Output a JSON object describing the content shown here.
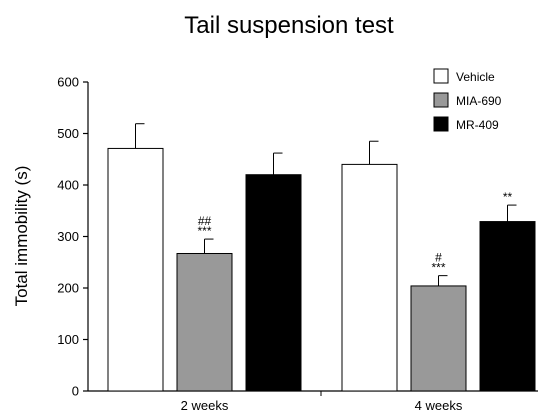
{
  "chart_data": {
    "type": "bar",
    "title": "Tail suspension test",
    "xlabel": "",
    "ylabel": "Total immobility (s)",
    "ylim": [
      0,
      600
    ],
    "yticks": [
      0,
      100,
      200,
      300,
      400,
      500,
      600
    ],
    "categories": [
      "2 weeks",
      "4 weeks"
    ],
    "grid": false,
    "legend_position": "top-right",
    "series": [
      {
        "name": "Vehicle",
        "color": "#ffffff",
        "values": [
          471,
          440
        ],
        "errors": [
          48,
          45
        ],
        "annotations": [
          "",
          ""
        ]
      },
      {
        "name": "MIA-690",
        "color": "#999999",
        "values": [
          267,
          204
        ],
        "errors": [
          28,
          20
        ],
        "annotations": [
          "##\n***",
          "#\n***"
        ]
      },
      {
        "name": "MR-409",
        "color": "#000000",
        "values": [
          420,
          329
        ],
        "errors": [
          42,
          32
        ],
        "annotations": [
          "",
          "**"
        ]
      }
    ]
  }
}
